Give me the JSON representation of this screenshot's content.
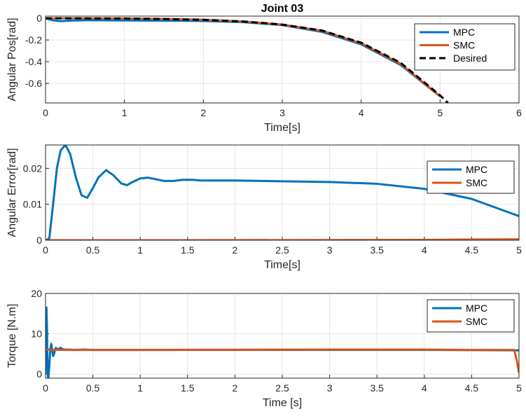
{
  "chart_data": [
    {
      "type": "line",
      "title": "Joint 03",
      "xlabel": "Time[s]",
      "ylabel": "Angular Pos[rad]",
      "xlim": [
        0,
        6
      ],
      "ylim": [
        -0.78,
        0.02
      ],
      "xticks": [
        "0",
        "1",
        "2",
        "3",
        "4",
        "5",
        "6"
      ],
      "yticks": [
        "0",
        "-0.2",
        "-0.4",
        "-0.6"
      ],
      "grid": true,
      "legend_position": "top-right",
      "series": [
        {
          "name": "MPC",
          "color": "#0072BD",
          "dash": "solid",
          "x": [
            0,
            0.1,
            0.2,
            0.3,
            0.5,
            1.0,
            1.5,
            2.0,
            2.5,
            3.0,
            3.5,
            4.0,
            4.5,
            5.0
          ],
          "y": [
            0,
            -0.02,
            -0.027,
            -0.022,
            -0.018,
            -0.02,
            -0.022,
            -0.025,
            -0.036,
            -0.062,
            -0.125,
            -0.24,
            -0.43,
            -0.72
          ]
        },
        {
          "name": "SMC",
          "color": "#D95319",
          "dash": "solid",
          "x": [
            0,
            0.5,
            1.0,
            1.5,
            2.0,
            2.5,
            3.0,
            3.5,
            4.0,
            4.5,
            5.0
          ],
          "y": [
            0,
            -0.0005,
            -0.002,
            -0.006,
            -0.014,
            -0.029,
            -0.058,
            -0.115,
            -0.23,
            -0.42,
            -0.72
          ]
        },
        {
          "name": "Desired",
          "color": "#000000",
          "dash": "dashed",
          "x": [
            0,
            0.5,
            1.0,
            1.5,
            2.0,
            2.5,
            3.0,
            3.5,
            4.0,
            4.5,
            5.0,
            5.1
          ],
          "y": [
            0,
            -0.0005,
            -0.002,
            -0.006,
            -0.014,
            -0.029,
            -0.058,
            -0.112,
            -0.225,
            -0.41,
            -0.71,
            -0.78
          ]
        }
      ]
    },
    {
      "type": "line",
      "title": "",
      "xlabel": "Time[s]",
      "ylabel": "Angular Error[rad]",
      "xlim": [
        0,
        5
      ],
      "ylim": [
        0,
        0.0265
      ],
      "xticks": [
        "0",
        "0.5",
        "1",
        "1.5",
        "2",
        "2.5",
        "3",
        "3.5",
        "4",
        "4.5",
        "5"
      ],
      "yticks": [
        "0",
        "0.01",
        "0.02"
      ],
      "grid": true,
      "legend_position": "top-right",
      "series": [
        {
          "name": "MPC",
          "color": "#0072BD",
          "dash": "solid",
          "x": [
            0,
            0.04,
            0.08,
            0.12,
            0.16,
            0.21,
            0.26,
            0.32,
            0.38,
            0.44,
            0.5,
            0.56,
            0.64,
            0.72,
            0.8,
            0.86,
            0.92,
            1.0,
            1.08,
            1.16,
            1.25,
            1.35,
            1.45,
            1.55,
            1.65,
            1.8,
            2.0,
            2.5,
            3.0,
            3.5,
            4.0,
            4.5,
            5.0
          ],
          "y": [
            0,
            0.0005,
            0.01,
            0.02,
            0.025,
            0.0265,
            0.024,
            0.0175,
            0.0125,
            0.0118,
            0.0145,
            0.0175,
            0.0195,
            0.018,
            0.0158,
            0.0153,
            0.0162,
            0.0172,
            0.0174,
            0.017,
            0.0165,
            0.0165,
            0.0168,
            0.0168,
            0.0166,
            0.0166,
            0.0166,
            0.0164,
            0.0162,
            0.0157,
            0.0143,
            0.0115,
            0.0067
          ]
        },
        {
          "name": "SMC",
          "color": "#D95319",
          "dash": "solid",
          "x": [
            0,
            1,
            2,
            3,
            4,
            4.5,
            5.0
          ],
          "y": [
            0,
            0,
            3e-05,
            5e-05,
            0.0001,
            0.0002,
            0.00025
          ]
        }
      ]
    },
    {
      "type": "line",
      "title": "",
      "xlabel": "Time [s]",
      "ylabel": "Torque [N.m]",
      "xlim": [
        0,
        5
      ],
      "ylim": [
        -1,
        20
      ],
      "xticks": [
        "0",
        "0.5",
        "1",
        "1.5",
        "2",
        "2.5",
        "3",
        "3.5",
        "4",
        "4.5",
        "5"
      ],
      "yticks": [
        "0",
        "10",
        "20"
      ],
      "grid": true,
      "legend_position": "top-right",
      "series": [
        {
          "name": "MPC",
          "color": "#0072BD",
          "dash": "solid",
          "x": [
            0,
            0.005,
            0.01,
            0.015,
            0.02,
            0.025,
            0.03,
            0.04,
            0.05,
            0.06,
            0.07,
            0.08,
            0.09,
            0.1,
            0.11,
            0.12,
            0.14,
            0.16,
            0.18,
            0.2,
            0.25,
            0.3,
            0.4,
            0.5,
            1.0,
            2.0,
            3.0,
            4.0,
            5.0
          ],
          "y": [
            0,
            8,
            16.5,
            12,
            4,
            -0.5,
            -1,
            2,
            6,
            7.5,
            6,
            4.5,
            5,
            6,
            6.5,
            6,
            6.3,
            6.5,
            6.2,
            6.1,
            6.1,
            6.0,
            6.1,
            6.0,
            6.0,
            6.0,
            6.0,
            6.0,
            5.9
          ]
        },
        {
          "name": "SMC",
          "color": "#D95319",
          "dash": "solid",
          "x": [
            0,
            0.01,
            0.05,
            0.1,
            0.5,
            1.0,
            2.0,
            3.0,
            4.0,
            4.5,
            4.95,
            4.98,
            5.0
          ],
          "y": [
            6.2,
            6.1,
            6.1,
            6.0,
            6.0,
            6.0,
            6.05,
            6.1,
            6.1,
            6.0,
            6.0,
            3.0,
            0.3
          ]
        }
      ]
    }
  ]
}
